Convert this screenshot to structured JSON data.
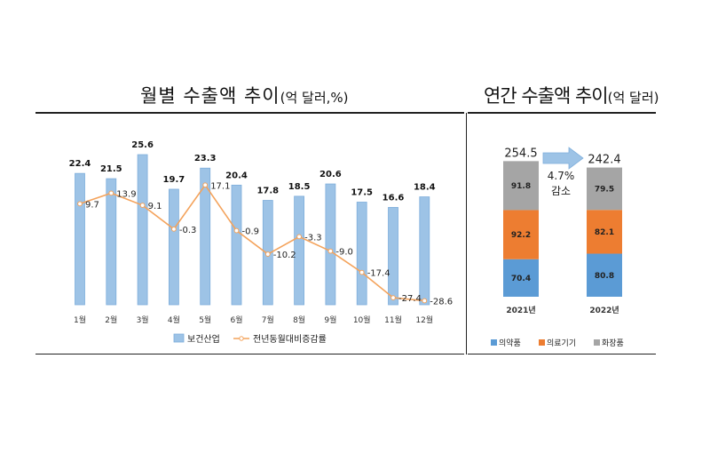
{
  "titles": {
    "left_main": "월별 수출액 추이",
    "left_sub": "(억 달러,%)",
    "right_main": "연간 수출액 추이",
    "right_sub": "(억 달러)"
  },
  "chart_data": [
    {
      "type": "bar",
      "title": "월별 수출액 추이(억 달러,%)",
      "categories": [
        "1월",
        "2월",
        "3월",
        "4월",
        "5월",
        "6월",
        "7월",
        "8월",
        "9월",
        "10월",
        "11월",
        "12월"
      ],
      "series": [
        {
          "name": "보건산업",
          "type": "bar",
          "color": "#9dc3e6",
          "values": [
            22.4,
            21.5,
            25.6,
            19.7,
            23.3,
            20.4,
            17.8,
            18.5,
            20.6,
            17.5,
            16.6,
            18.4
          ]
        },
        {
          "name": "전년동월대비증감률",
          "type": "line",
          "color": "#f4a35c",
          "values": [
            9.7,
            13.9,
            9.1,
            -0.3,
            17.1,
            -0.9,
            -10.2,
            -3.3,
            -9.0,
            -17.4,
            -27.4,
            -28.6
          ]
        }
      ],
      "legend": "bottom",
      "grid": false
    },
    {
      "type": "bar",
      "stacked": true,
      "title": "연간 수출액 추이(억 달러)",
      "categories": [
        "2021년",
        "2022년"
      ],
      "totals": [
        "254.5",
        "242.4"
      ],
      "series": [
        {
          "name": "의약품",
          "color": "#5b9bd5",
          "values": [
            70.4,
            80.8
          ]
        },
        {
          "name": "의료기기",
          "color": "#ed7d31",
          "values": [
            92.2,
            82.1
          ]
        },
        {
          "name": "화장품",
          "color": "#a5a5a5",
          "values": [
            91.8,
            79.5
          ]
        }
      ],
      "annotation": {
        "value": "4.7%",
        "text": "감소"
      },
      "legend": "bottom",
      "grid": false
    }
  ],
  "colors": {
    "bar_fill": "#9dc3e6",
    "bar_stroke": "#7eaedb",
    "line": "#f4a35c",
    "marker_fill": "#ffffff",
    "arrow_fill": "#9dc3e6"
  }
}
